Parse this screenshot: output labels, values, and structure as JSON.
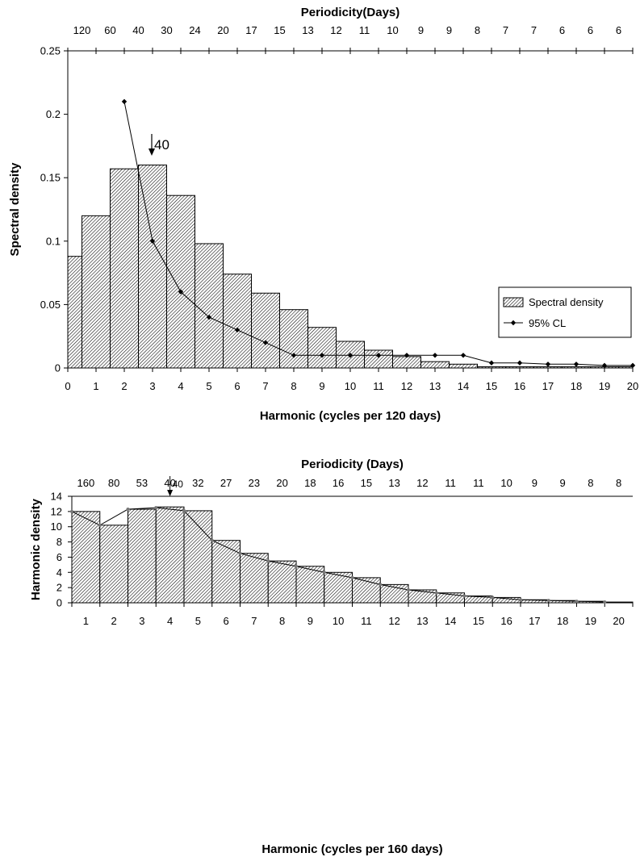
{
  "chart_data": [
    {
      "type": "bar",
      "ylabel": "Spectral density",
      "xlabel": "Harmonic (cycles per 120 days)",
      "top_axis_label": "Periodicity(Days)",
      "top_tick_labels": [
        "120",
        "60",
        "40",
        "30",
        "24",
        "20",
        "17",
        "15",
        "13",
        "12",
        "11",
        "10",
        "9",
        "9",
        "8",
        "7",
        "7",
        "6",
        "6",
        "6"
      ],
      "x_ticks": [
        "0",
        "1",
        "2",
        "3",
        "4",
        "5",
        "6",
        "7",
        "8",
        "9",
        "10",
        "11",
        "12",
        "13",
        "14",
        "15",
        "16",
        "17",
        "18",
        "19",
        "20"
      ],
      "y_ticks": [
        "0",
        "0.05",
        "0.1",
        "0.15",
        "0.2",
        "0.25"
      ],
      "ylim": [
        0,
        0.25
      ],
      "xlim": [
        0,
        20
      ],
      "grid": false,
      "legend_position": "right",
      "series": [
        {
          "name": "Spectral density",
          "type": "bar",
          "x": [
            0,
            1,
            2,
            3,
            4,
            5,
            6,
            7,
            8,
            9,
            10,
            11,
            12,
            13,
            14,
            15,
            16,
            17,
            18,
            19,
            20
          ],
          "values": [
            0.088,
            0.12,
            0.157,
            0.16,
            0.136,
            0.098,
            0.074,
            0.059,
            0.046,
            0.032,
            0.021,
            0.014,
            0.009,
            0.005,
            0.003,
            0.001,
            0.001,
            0.001,
            0.001,
            0.001,
            0.001
          ]
        },
        {
          "name": "95% CL",
          "type": "line",
          "x": [
            2,
            3,
            4,
            5,
            6,
            7,
            8,
            9,
            10,
            11,
            12,
            13,
            14,
            15,
            16,
            17,
            18,
            19,
            20
          ],
          "values": [
            0.21,
            0.1,
            0.06,
            0.04,
            0.03,
            0.02,
            0.01,
            0.01,
            0.01,
            0.01,
            0.01,
            0.01,
            0.01,
            0.004,
            0.004,
            0.003,
            0.003,
            0.002,
            0.002
          ]
        }
      ],
      "annotation": {
        "text": "40",
        "x": 3
      }
    },
    {
      "type": "bar",
      "ylabel": "Harmonic density",
      "xlabel": "Harmonic (cycles per 160 days)",
      "top_axis_label": "Periodicity (Days)",
      "top_tick_labels": [
        "160",
        "80",
        "53",
        "40",
        "32",
        "27",
        "23",
        "20",
        "18",
        "16",
        "15",
        "13",
        "12",
        "11",
        "11",
        "10",
        "9",
        "9",
        "8",
        "8"
      ],
      "categories": [
        "1",
        "2",
        "3",
        "4",
        "5",
        "6",
        "7",
        "8",
        "9",
        "10",
        "11",
        "12",
        "13",
        "14",
        "15",
        "16",
        "17",
        "18",
        "19",
        "20"
      ],
      "y_ticks": [
        "0",
        "2",
        "4",
        "6",
        "8",
        "10",
        "12",
        "14"
      ],
      "ylim": [
        0,
        14
      ],
      "grid": false,
      "series": [
        {
          "type": "bar",
          "values": [
            12.0,
            10.2,
            12.3,
            12.6,
            12.1,
            8.2,
            6.5,
            5.5,
            4.8,
            4.0,
            3.3,
            2.4,
            1.7,
            1.3,
            0.9,
            0.7,
            0.4,
            0.3,
            0.2,
            0.1
          ]
        },
        {
          "type": "line",
          "values": [
            12.0,
            10.2,
            12.3,
            12.5,
            12.1,
            8.2,
            6.5,
            5.5,
            4.8,
            4.0,
            3.3,
            2.4,
            1.7,
            1.3,
            0.9,
            0.7,
            0.4,
            0.3,
            0.2,
            0.1
          ]
        }
      ],
      "annotation": {
        "text": "40",
        "x": 4
      }
    }
  ]
}
